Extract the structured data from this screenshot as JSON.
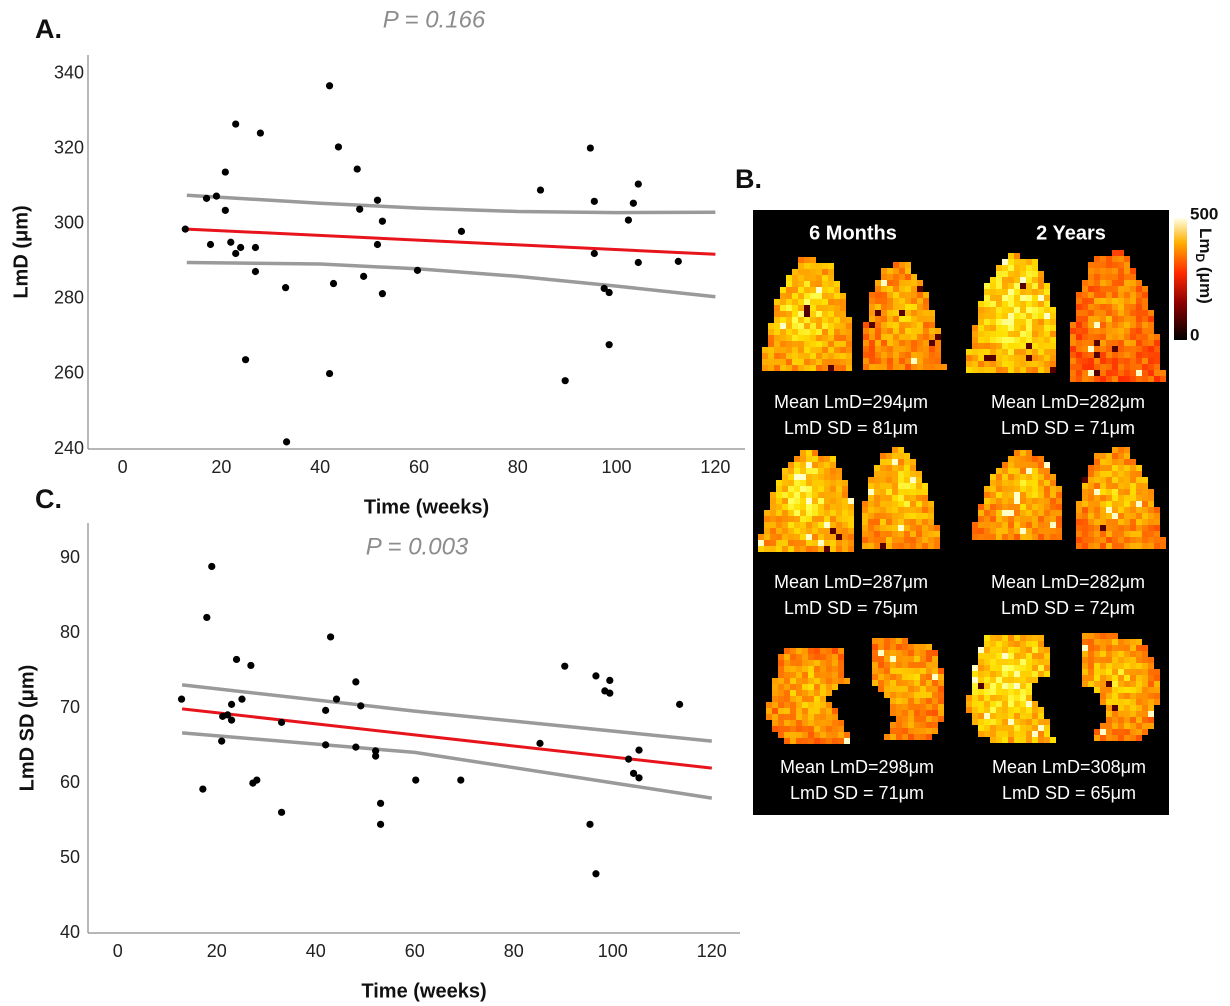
{
  "chart_data": [
    {
      "type": "scatter",
      "panel_label": "A.",
      "annotation": "P = 0.166",
      "x_label": "Time (weeks)",
      "y_label": "LmD (μm)",
      "xlim": [
        -7,
        126
      ],
      "ylim": [
        240,
        345
      ],
      "xticks": [
        0,
        20,
        40,
        60,
        80,
        100,
        120
      ],
      "yticks": [
        240,
        260,
        280,
        300,
        320,
        340
      ],
      "color": "#000000",
      "fit_color": "#e8141c",
      "ci_color": "#9a9a9a",
      "x": [
        12.7,
        17.0,
        19.0,
        17.8,
        20.8,
        20.8,
        21.9,
        22.9,
        22.9,
        23.9,
        24.9,
        26.9,
        26.9,
        27.9,
        33.0,
        33.2,
        41.9,
        41.9,
        42.7,
        43.7,
        47.5,
        48.0,
        48.8,
        51.6,
        51.6,
        52.6,
        52.6,
        59.7,
        68.6,
        84.6,
        89.6,
        94.7,
        95.5,
        95.5,
        97.5,
        98.5,
        98.5,
        102.4,
        103.4,
        104.4,
        104.4,
        112.5
      ],
      "values": [
        298.6,
        306.8,
        307.4,
        294.5,
        313.8,
        303.6,
        295.1,
        326.6,
        292.1,
        293.7,
        263.8,
        293.7,
        287.3,
        324.2,
        283.0,
        241.9,
        336.8,
        260.1,
        284.1,
        320.5,
        314.6,
        303.9,
        286.0,
        306.3,
        294.5,
        300.7,
        281.4,
        287.6,
        298.0,
        309.0,
        258.2,
        320.2,
        306.0,
        292.1,
        282.8,
        281.7,
        267.8,
        301.0,
        305.5,
        310.6,
        289.7,
        290.0
      ],
      "fit": {
        "x": [
          13,
          120
        ],
        "values": [
          298.6,
          291.9
        ]
      },
      "ci_upper": {
        "x": [
          13,
          40,
          60,
          80,
          100,
          120
        ],
        "values": [
          307.6,
          305.5,
          304.2,
          303.3,
          303.0,
          303.1
        ]
      },
      "ci_lower": {
        "x": [
          13,
          40,
          60,
          80,
          100,
          120
        ],
        "values": [
          289.7,
          289.3,
          288.0,
          286.0,
          283.4,
          280.6
        ]
      }
    },
    {
      "type": "scatter",
      "panel_label": "C.",
      "annotation": "P = 0.003",
      "x_label": "Time (weeks)",
      "y_label": "LmD SD (μm)",
      "xlim": [
        -6,
        125.7
      ],
      "ylim": [
        40,
        94.7
      ],
      "xticks": [
        0,
        20,
        40,
        60,
        80,
        100,
        120
      ],
      "yticks": [
        40,
        50,
        60,
        70,
        80,
        90
      ],
      "color": "#000000",
      "fit_color": "#e8141c",
      "ci_color": "#9a9a9a",
      "x": [
        12.9,
        17.2,
        18.0,
        19.0,
        21.0,
        21.2,
        22.2,
        23.0,
        23.0,
        24.0,
        25.1,
        26.9,
        27.3,
        28.1,
        33.1,
        33.1,
        42.0,
        42.0,
        43.0,
        44.2,
        48.1,
        48.1,
        49.1,
        52.1,
        52.1,
        53.1,
        53.1,
        60.2,
        69.3,
        85.3,
        90.3,
        95.4,
        96.6,
        96.6,
        98.4,
        99.4,
        99.4,
        103.2,
        104.2,
        105.3,
        105.3,
        113.5
      ],
      "values": [
        71.2,
        59.2,
        82.1,
        88.9,
        65.6,
        68.9,
        69.1,
        70.5,
        68.4,
        76.5,
        71.2,
        75.7,
        60.0,
        60.4,
        68.1,
        56.1,
        69.7,
        65.1,
        79.5,
        71.2,
        73.5,
        64.8,
        70.3,
        64.3,
        63.6,
        57.3,
        54.5,
        60.4,
        60.4,
        65.3,
        75.6,
        54.5,
        74.3,
        47.9,
        72.3,
        73.7,
        72.0,
        63.2,
        61.3,
        64.4,
        60.7,
        70.5
      ],
      "fit": {
        "x": [
          13,
          120
        ],
        "values": [
          69.9,
          62.0
        ]
      },
      "ci_upper": {
        "x": [
          13,
          60,
          120
        ],
        "values": [
          73.1,
          69.6,
          65.6
        ]
      },
      "ci_lower": {
        "x": [
          13,
          60,
          120
        ],
        "values": [
          66.7,
          64.1,
          58.0
        ]
      }
    }
  ],
  "panel_b": {
    "label": "B.",
    "columns": [
      "6 Months",
      "2 Years"
    ],
    "captions": [
      {
        "mean": "Mean LmD=294μm",
        "sd": "LmD SD = 81μm"
      },
      {
        "mean": "Mean LmD=282μm",
        "sd": "LmD SD = 71μm"
      },
      {
        "mean": "Mean LmD=287μm",
        "sd": "LmD SD = 75μm"
      },
      {
        "mean": "Mean LmD=282μm",
        "sd": "LmD SD = 72μm"
      },
      {
        "mean": "Mean LmD=298μm",
        "sd": "LmD SD = 71μm"
      },
      {
        "mean": "Mean LmD=308μm",
        "sd": "LmD SD = 65μm"
      }
    ],
    "colorbar": {
      "label": "Lm",
      "label_sub": "D",
      "label_unit": " (μm)",
      "ticks": [
        0,
        500
      ]
    }
  }
}
